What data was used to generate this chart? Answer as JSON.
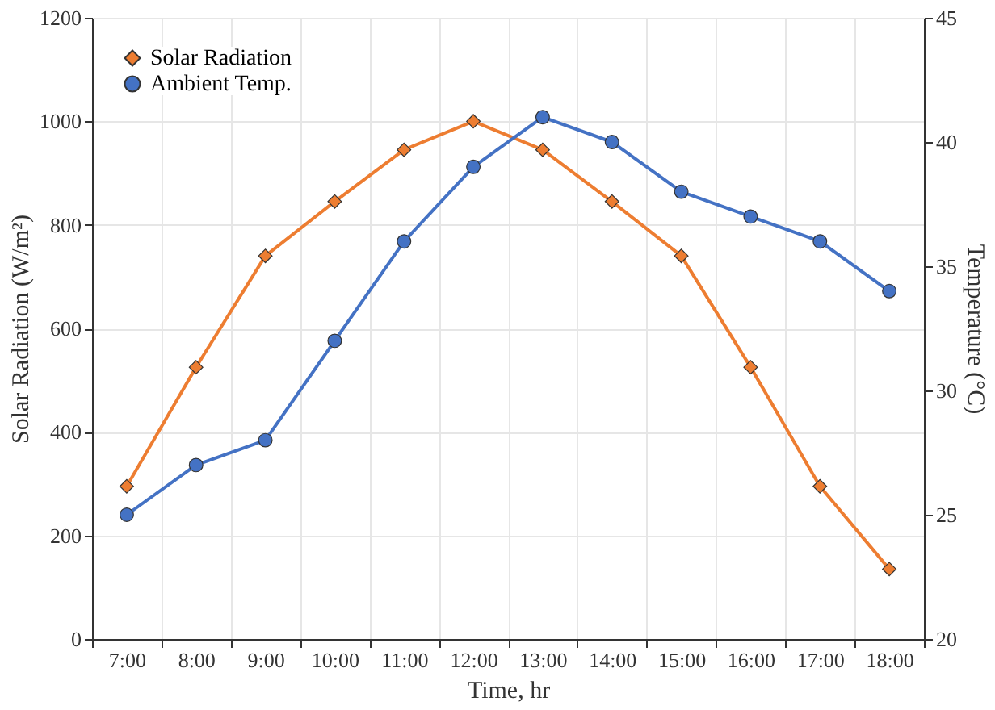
{
  "chart_data": {
    "type": "line",
    "categories": [
      "7:00",
      "8:00",
      "9:00",
      "10:00",
      "11:00",
      "12:00",
      "13:00",
      "14:00",
      "15:00",
      "16:00",
      "17:00",
      "18:00"
    ],
    "xlabel": "Time,  hr",
    "ylabel": "Solar Radiation (W/m²)",
    "y2label": "Temperature (°C)",
    "ylim": [
      0,
      1200
    ],
    "yticks": [
      0,
      200,
      400,
      600,
      800,
      1000,
      1200
    ],
    "y2lim": [
      20,
      45
    ],
    "y2ticks": [
      20,
      25,
      30,
      35,
      40,
      45
    ],
    "grid": true,
    "legend": "top left",
    "series": [
      {
        "name": "Solar Radiation",
        "color": "#ed7d31",
        "marker": "diamond",
        "values": [
          295,
          525,
          740,
          845,
          945,
          1000,
          945,
          845,
          740,
          525,
          295,
          135
        ]
      },
      {
        "name": "Ambient Temp.",
        "color": "#4472c4",
        "marker": "circle",
        "axis": "y2",
        "values": [
          25,
          27,
          28,
          32,
          36,
          39,
          41,
          40,
          38,
          37,
          36,
          34
        ]
      }
    ]
  }
}
